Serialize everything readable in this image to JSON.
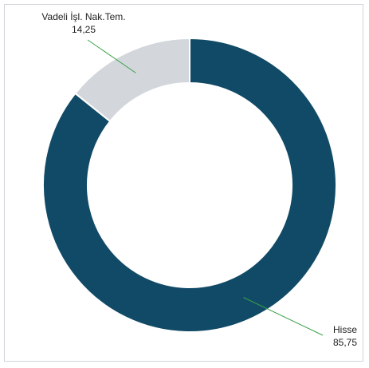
{
  "chart_data": {
    "type": "pie",
    "donut": true,
    "unit": "percent",
    "slices": [
      {
        "label": "Hisse",
        "value": 85.75,
        "value_text": "85,75",
        "color": "#114a66"
      },
      {
        "label": "Vadeli İşl. Nak.Tem.",
        "value": 14.25,
        "value_text": "14,25",
        "color": "#d3d7dc"
      }
    ],
    "leader_line_color": "#3aa14a",
    "legend": "none"
  }
}
